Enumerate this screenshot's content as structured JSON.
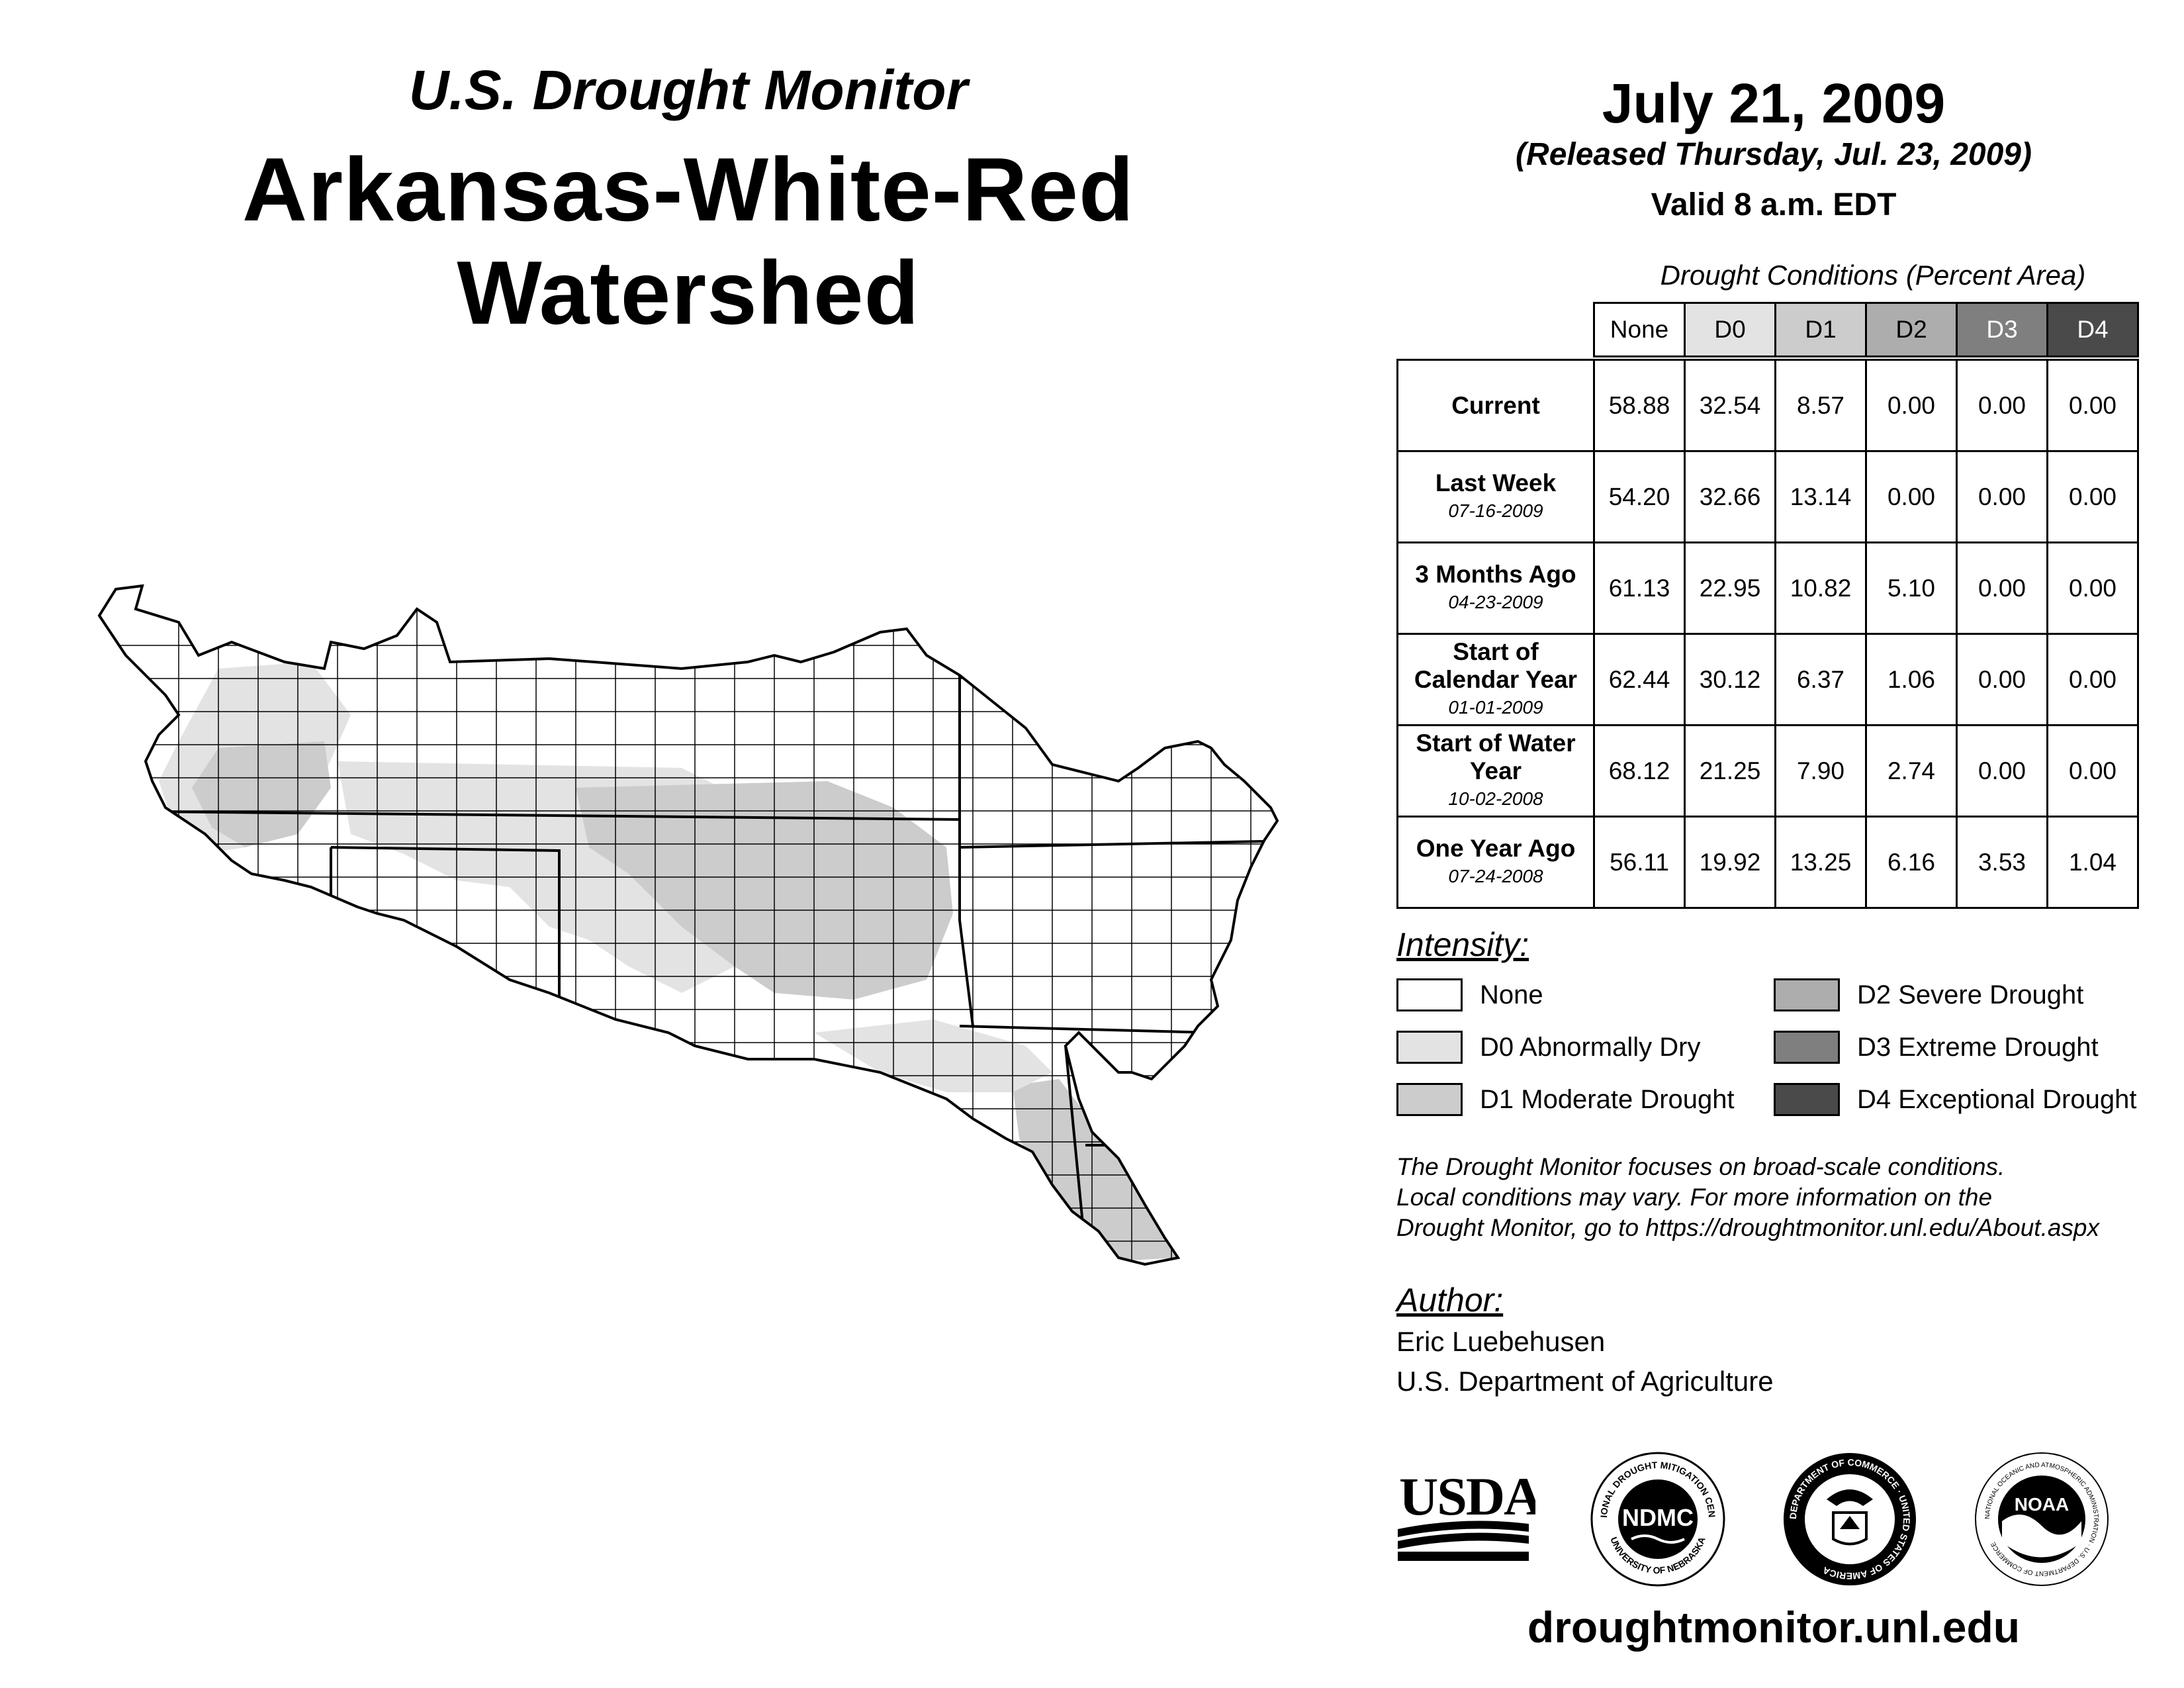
{
  "header": {
    "subtitle": "U.S. Drought Monitor",
    "title": "Arkansas-White-Red Watershed",
    "date": "July 21, 2009",
    "released": "(Released Thursday, Jul. 23, 2009)",
    "valid": "Valid 8 a.m. EDT"
  },
  "table": {
    "title": "Drought Conditions (Percent Area)",
    "columns": [
      "None",
      "D0",
      "D1",
      "D2",
      "D3",
      "D4"
    ],
    "rows": [
      {
        "label": "Current",
        "sub": "",
        "values": [
          "58.88",
          "32.54",
          "8.57",
          "0.00",
          "0.00",
          "0.00"
        ]
      },
      {
        "label": "Last Week",
        "sub": "07-16-2009",
        "values": [
          "54.20",
          "32.66",
          "13.14",
          "0.00",
          "0.00",
          "0.00"
        ]
      },
      {
        "label": "3 Months Ago",
        "sub": "04-23-2009",
        "values": [
          "61.13",
          "22.95",
          "10.82",
          "5.10",
          "0.00",
          "0.00"
        ]
      },
      {
        "label": "Start of Calendar Year",
        "sub": "01-01-2009",
        "values": [
          "62.44",
          "30.12",
          "6.37",
          "1.06",
          "0.00",
          "0.00"
        ]
      },
      {
        "label": "Start of Water Year",
        "sub": "10-02-2008",
        "values": [
          "68.12",
          "21.25",
          "7.90",
          "2.74",
          "0.00",
          "0.00"
        ]
      },
      {
        "label": "One Year Ago",
        "sub": "07-24-2008",
        "values": [
          "56.11",
          "19.92",
          "13.25",
          "6.16",
          "3.53",
          "1.04"
        ]
      }
    ]
  },
  "intensity": {
    "title": "Intensity:",
    "items": [
      {
        "label": "None",
        "color": "#ffffff"
      },
      {
        "label": "D0 Abnormally Dry",
        "color": "#e3e3e3"
      },
      {
        "label": "D1 Moderate Drought",
        "color": "#cccccc"
      },
      {
        "label": "D2 Severe Drought",
        "color": "#adadad"
      },
      {
        "label": "D3 Extreme Drought",
        "color": "#7f7f7f"
      },
      {
        "label": "D4 Exceptional Drought",
        "color": "#4a4a4a"
      }
    ]
  },
  "note": {
    "line1": "The Drought Monitor focuses on broad-scale conditions.",
    "line2": "Local conditions may vary. For more information on the",
    "line3": "Drought Monitor, go to https://droughtmonitor.unl.edu/About.aspx"
  },
  "author": {
    "title": "Author:",
    "name": "Eric Luebehusen",
    "org": "U.S. Department of Agriculture"
  },
  "logos": {
    "usda": "USDA",
    "ndmc": "NDMC",
    "ndmc_ring_top": "NATIONAL DROUGHT MITIGATION CENTER",
    "ndmc_ring_bottom": "UNIVERSITY OF NEBRASKA",
    "doc_ring": "DEPARTMENT OF COMMERCE · UNITED STATES OF AMERICA",
    "noaa": "NOAA",
    "noaa_ring": "NATIONAL OCEANIC AND ATMOSPHERIC ADMINISTRATION · U.S. DEPARTMENT OF COMMERCE"
  },
  "website": "droughtmonitor.unl.edu"
}
